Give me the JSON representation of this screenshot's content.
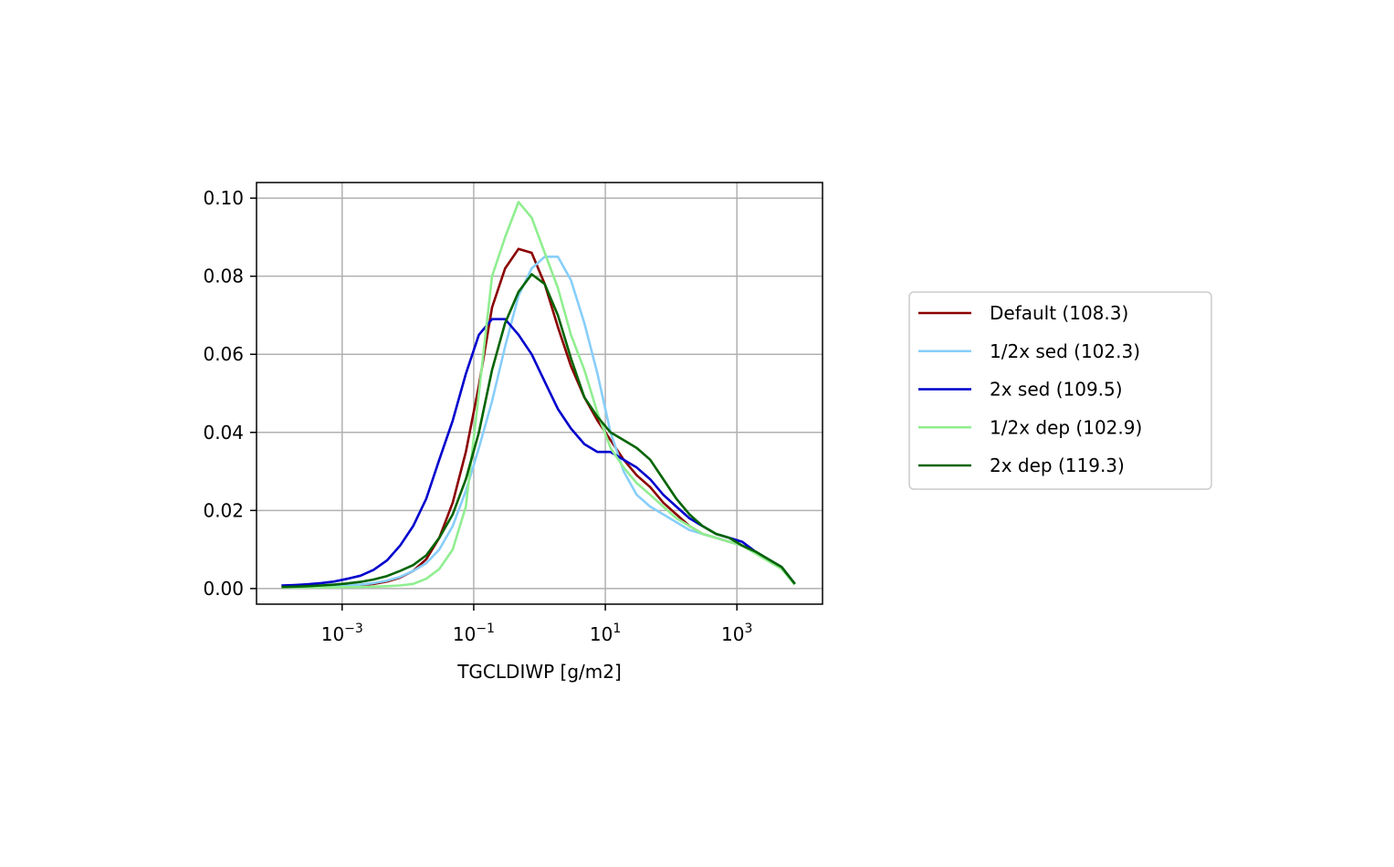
{
  "chart_data": {
    "type": "line",
    "title": "",
    "xlabel": "TGCLDIWP [g/m2]",
    "ylabel": "",
    "xscale": "log",
    "xlim": [
      5e-05,
      20000
    ],
    "ylim": [
      -0.004,
      0.104
    ],
    "grid": true,
    "legend_position": "outside-right",
    "x_ticks": [
      {
        "value": 0.001,
        "base": "10",
        "exp": "−3"
      },
      {
        "value": 0.1,
        "base": "10",
        "exp": "−1"
      },
      {
        "value": 10,
        "base": "10",
        "exp": "1"
      },
      {
        "value": 1000,
        "base": "10",
        "exp": "3"
      }
    ],
    "y_ticks": [
      {
        "value": 0.0,
        "label": "0.00"
      },
      {
        "value": 0.02,
        "label": "0.02"
      },
      {
        "value": 0.04,
        "label": "0.04"
      },
      {
        "value": 0.06,
        "label": "0.06"
      },
      {
        "value": 0.08,
        "label": "0.08"
      },
      {
        "value": 0.1,
        "label": "0.10"
      }
    ],
    "x": [
      0.00012,
      0.00019,
      0.0003,
      0.00048,
      0.00076,
      0.0012,
      0.0019,
      0.003,
      0.0048,
      0.0076,
      0.012,
      0.019,
      0.03,
      0.048,
      0.076,
      0.12,
      0.19,
      0.3,
      0.48,
      0.76,
      1.2,
      1.9,
      3.0,
      4.8,
      7.6,
      12,
      19,
      30,
      48,
      76,
      120,
      190,
      300,
      480,
      760,
      1200,
      1900,
      3000,
      4800,
      7600
    ],
    "series": [
      {
        "name": "Default (108.3)",
        "color": "#8b0000",
        "values": [
          0.0005,
          0.0005,
          0.0006,
          0.0006,
          0.0007,
          0.0008,
          0.0009,
          0.0012,
          0.0018,
          0.0028,
          0.0045,
          0.0075,
          0.013,
          0.022,
          0.035,
          0.052,
          0.072,
          0.082,
          0.087,
          0.086,
          0.078,
          0.067,
          0.057,
          0.049,
          0.043,
          0.038,
          0.033,
          0.029,
          0.026,
          0.022,
          0.019,
          0.016,
          0.014,
          0.013,
          0.012,
          0.011,
          0.0095,
          0.0075,
          0.0055,
          0.0012
        ]
      },
      {
        "name": "1/2x sed (102.3)",
        "color": "#87cefa",
        "values": [
          0.0005,
          0.0005,
          0.0006,
          0.0006,
          0.0007,
          0.0008,
          0.001,
          0.0014,
          0.002,
          0.003,
          0.0045,
          0.0065,
          0.01,
          0.016,
          0.025,
          0.036,
          0.048,
          0.062,
          0.075,
          0.082,
          0.085,
          0.085,
          0.079,
          0.068,
          0.055,
          0.04,
          0.03,
          0.024,
          0.021,
          0.019,
          0.017,
          0.015,
          0.014,
          0.013,
          0.012,
          0.011,
          0.0095,
          0.0075,
          0.0055,
          0.0012
        ]
      },
      {
        "name": "2x sed (109.5)",
        "color": "#0000cd",
        "values": [
          0.0008,
          0.0009,
          0.0011,
          0.0014,
          0.0018,
          0.0025,
          0.0033,
          0.0048,
          0.0072,
          0.011,
          0.016,
          0.023,
          0.033,
          0.043,
          0.055,
          0.065,
          0.069,
          0.069,
          0.065,
          0.06,
          0.053,
          0.046,
          0.041,
          0.037,
          0.035,
          0.035,
          0.033,
          0.031,
          0.028,
          0.024,
          0.021,
          0.018,
          0.016,
          0.014,
          0.013,
          0.012,
          0.0095,
          0.0075,
          0.0055,
          0.0012
        ]
      },
      {
        "name": "1/2x dep (102.9)",
        "color": "#90ee90",
        "values": [
          0.0003,
          0.0003,
          0.0003,
          0.0003,
          0.0003,
          0.0004,
          0.0004,
          0.0005,
          0.0006,
          0.0008,
          0.0012,
          0.0025,
          0.005,
          0.01,
          0.021,
          0.05,
          0.08,
          0.09,
          0.099,
          0.095,
          0.086,
          0.077,
          0.065,
          0.056,
          0.045,
          0.036,
          0.031,
          0.027,
          0.024,
          0.021,
          0.018,
          0.016,
          0.014,
          0.013,
          0.012,
          0.011,
          0.009,
          0.007,
          0.005,
          0.001
        ]
      },
      {
        "name": "2x dep (119.3)",
        "color": "#006400",
        "values": [
          0.0004,
          0.0005,
          0.0006,
          0.0008,
          0.001,
          0.0013,
          0.0017,
          0.0023,
          0.0032,
          0.0045,
          0.006,
          0.0085,
          0.013,
          0.019,
          0.028,
          0.04,
          0.056,
          0.068,
          0.076,
          0.0805,
          0.078,
          0.07,
          0.059,
          0.049,
          0.044,
          0.04,
          0.038,
          0.036,
          0.033,
          0.028,
          0.023,
          0.019,
          0.016,
          0.014,
          0.013,
          0.011,
          0.0095,
          0.0075,
          0.0055,
          0.0012
        ]
      }
    ]
  }
}
